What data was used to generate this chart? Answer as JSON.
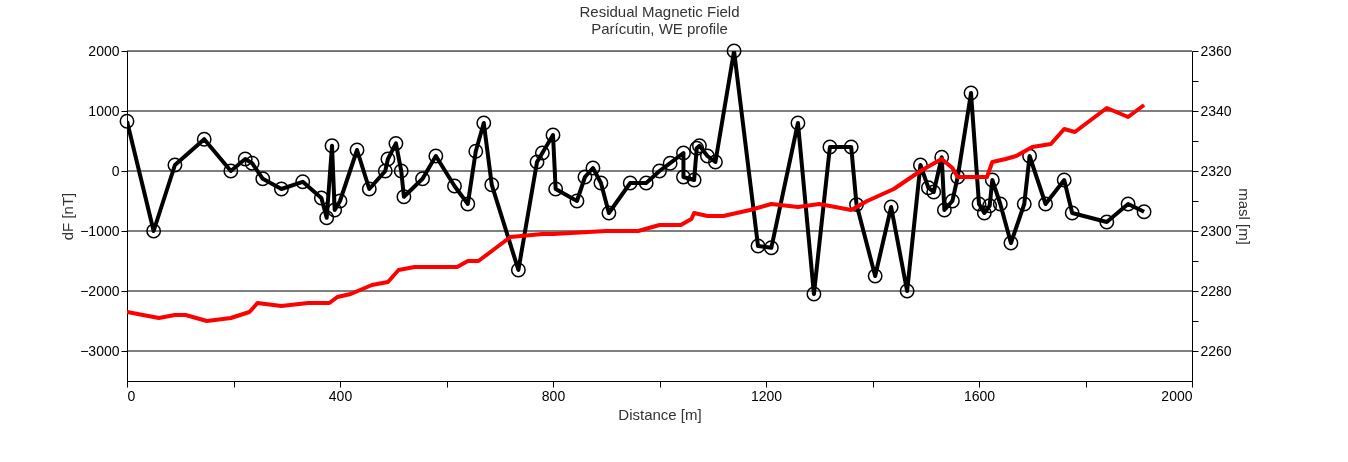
{
  "chart_data": {
    "type": "line",
    "title": "Residual Magnetic Field",
    "subtitle": "Parícutin, WE profile",
    "xlabel": "Distance [m]",
    "ylabel": "dF [nT]",
    "y2label": "masl [m]",
    "xlim": [
      0,
      2000
    ],
    "xticks": [
      0,
      {
        "value": 200,
        "label": null
      },
      400,
      {
        "value": 600,
        "label": null
      },
      800,
      {
        "value": 1000,
        "label": null
      },
      1200,
      {
        "value": 1400,
        "label": null
      },
      1600,
      {
        "value": 1800,
        "label": null
      },
      2000
    ],
    "ylim": [
      -3500,
      2000
    ],
    "yticks": [
      -3000,
      {
        "value": -2500,
        "label": null
      },
      -2000,
      {
        "value": -1500,
        "label": null
      },
      -1000,
      {
        "value": -500,
        "label": null
      },
      0,
      {
        "value": 500,
        "label": null
      },
      1000,
      {
        "value": 1500,
        "label": null
      },
      2000
    ],
    "y2lim": [
      2250,
      2360
    ],
    "y2ticks": [
      2260,
      {
        "value": 2270,
        "label": null
      },
      2280,
      {
        "value": 2290,
        "label": null
      },
      2300,
      {
        "value": 2310,
        "label": null
      },
      2320,
      {
        "value": 2330,
        "label": null
      },
      2340,
      {
        "value": 2350,
        "label": null
      },
      2360
    ],
    "grid": "y",
    "line_style": "solid",
    "series": [
      {
        "color": "#000000",
        "marker": "circle",
        "x": [
          0,
          50,
          90,
          145,
          195,
          222,
          235,
          255,
          290,
          330,
          365,
          375,
          385,
          390,
          400,
          432,
          455,
          485,
          490,
          505,
          515,
          520,
          555,
          580,
          615,
          640,
          655,
          670,
          685,
          735,
          770,
          780,
          800,
          805,
          845,
          860,
          875,
          890,
          905,
          945,
          975,
          1000,
          1020,
          1045,
          1045,
          1065,
          1070,
          1075,
          1090,
          1105,
          1140,
          1185,
          1210,
          1260,
          1290,
          1320,
          1360,
          1370,
          1405,
          1435,
          1465,
          1490,
          1505,
          1515,
          1530,
          1535,
          1550,
          1560,
          1585,
          1600,
          1610,
          1620,
          1625,
          1640,
          1660,
          1685,
          1695,
          1725,
          1760,
          1775,
          1840,
          1880,
          1910
        ],
        "values": [
          830,
          -1000,
          100,
          530,
          0,
          200,
          130,
          -130,
          -300,
          -180,
          -450,
          -780,
          420,
          -650,
          -500,
          350,
          -300,
          0,
          200,
          460,
          0,
          -430,
          -130,
          250,
          -250,
          -550,
          330,
          800,
          -230,
          -1650,
          150,
          300,
          600,
          -300,
          -500,
          -100,
          50,
          -200,
          -700,
          -200,
          -200,
          0,
          130,
          300,
          -100,
          -150,
          380,
          420,
          250,
          150,
          2000,
          -1250,
          -1280,
          800,
          -2050,
          400,
          400,
          -560,
          -1750,
          -600,
          -2000,
          100,
          -280,
          -350,
          230,
          -650,
          -500,
          -100,
          1300,
          -550,
          -700,
          -580,
          -150,
          -550,
          -1200,
          -550,
          250,
          -550,
          -150,
          -700,
          -850,
          -550,
          -680
        ]
      },
      {
        "color": "#ff0000",
        "marker": "none",
        "axis": "y2",
        "x": [
          0,
          30,
          60,
          90,
          110,
          150,
          195,
          230,
          245,
          290,
          340,
          380,
          395,
          420,
          460,
          490,
          510,
          540,
          580,
          620,
          640,
          660,
          690,
          720,
          780,
          800,
          900,
          960,
          1000,
          1040,
          1060,
          1065,
          1090,
          1120,
          1170,
          1210,
          1260,
          1300,
          1360,
          1390,
          1440,
          1490,
          1530,
          1550,
          1560,
          1590,
          1615,
          1625,
          1650,
          1670,
          1700,
          1735,
          1760,
          1780,
          1840,
          1880,
          1910
        ],
        "values": [
          2273,
          2272,
          2271,
          2272,
          2272,
          2270,
          2271,
          2273,
          2276,
          2275,
          2276,
          2276,
          2278,
          2279,
          2282,
          2283,
          2287,
          2288,
          2288,
          2288,
          2290,
          2290,
          2294,
          2298,
          2299,
          2299,
          2300,
          2300,
          2302,
          2302,
          2304,
          2306,
          2305,
          2305,
          2307,
          2309,
          2308,
          2309,
          2307,
          2310,
          2314,
          2320,
          2324,
          2321,
          2318,
          2318,
          2318,
          2323,
          2324,
          2325,
          2328,
          2329,
          2334,
          2333,
          2341,
          2338,
          2342
        ]
      }
    ]
  }
}
